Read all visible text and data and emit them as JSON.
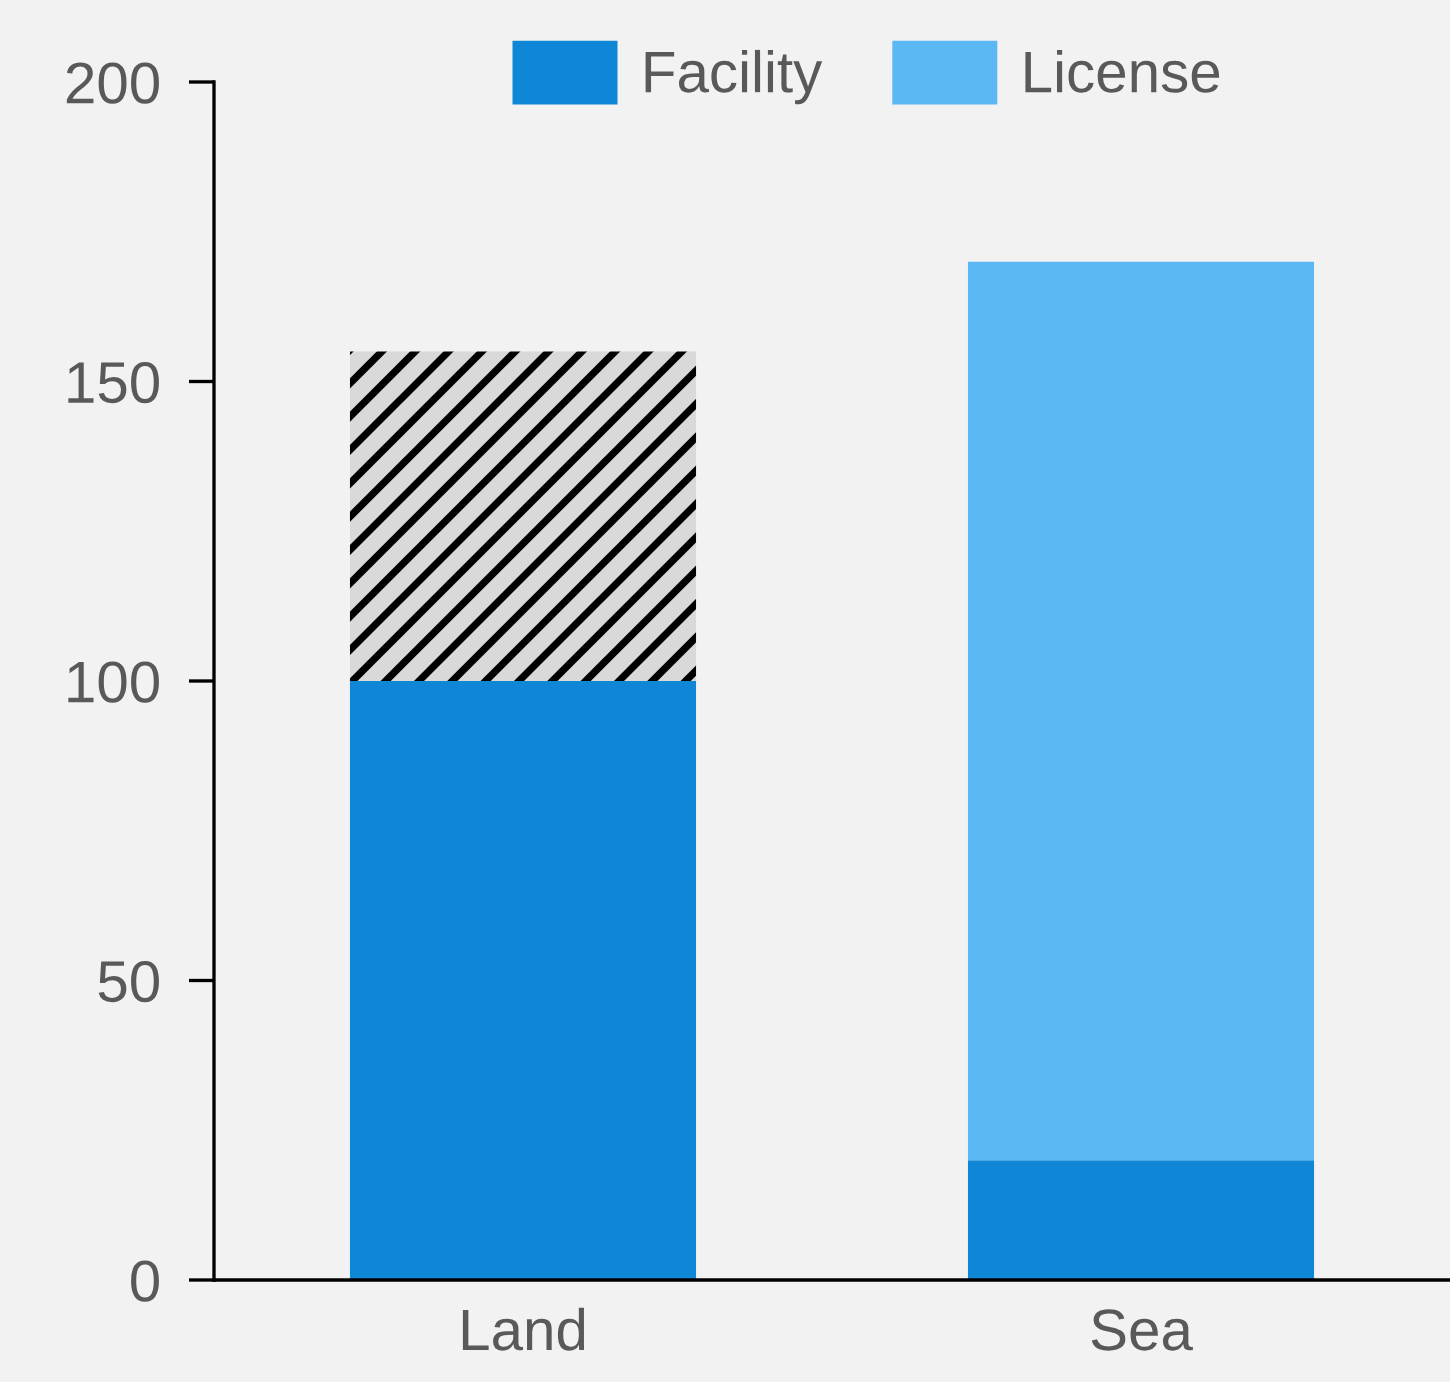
{
  "chart_data": {
    "type": "bar",
    "stacked": true,
    "categories": [
      "Land",
      "Sea"
    ],
    "series": [
      {
        "name": "Facility",
        "color": "#0f86d6",
        "values": [
          100,
          20
        ]
      },
      {
        "name": "License",
        "color": "#5bb8f5",
        "values": [
          null,
          150
        ]
      },
      {
        "color": "#d9d9d9",
        "values": [
          55,
          null
        ]
      }
    ],
    "ylim": [
      0,
      200
    ],
    "yticks": [
      0,
      50,
      100,
      150,
      200
    ],
    "grid": false,
    "legend": "top"
  }
}
